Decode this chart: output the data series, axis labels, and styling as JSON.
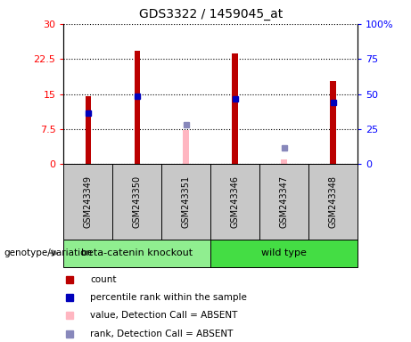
{
  "title": "GDS3322 / 1459045_at",
  "samples": [
    "GSM243349",
    "GSM243350",
    "GSM243351",
    "GSM243346",
    "GSM243347",
    "GSM243348"
  ],
  "red_bars": [
    14.5,
    24.2,
    null,
    23.7,
    null,
    17.8
  ],
  "blue_markers": [
    11.0,
    14.5,
    null,
    14.0,
    null,
    13.2
  ],
  "pink_bars": [
    null,
    null,
    7.3,
    null,
    1.0,
    null
  ],
  "light_blue_markers": [
    null,
    null,
    8.5,
    null,
    3.5,
    null
  ],
  "groups": [
    {
      "label": "beta-catenin knockout",
      "indices": [
        0,
        1,
        2
      ],
      "color": "#90EE90"
    },
    {
      "label": "wild type",
      "indices": [
        3,
        4,
        5
      ],
      "color": "#44DD44"
    }
  ],
  "ylim_left": [
    0,
    30
  ],
  "ylim_right": [
    0,
    100
  ],
  "yticks_left": [
    0,
    7.5,
    15,
    22.5,
    30
  ],
  "ytick_labels_left": [
    "0",
    "7.5",
    "15",
    "22.5",
    "30"
  ],
  "yticks_right": [
    0,
    25,
    50,
    75,
    100
  ],
  "ytick_labels_right": [
    "0",
    "25",
    "50",
    "75",
    "100%"
  ],
  "bar_width": 0.12,
  "bar_color_red": "#BB0000",
  "bar_color_pink": "#FFB6C1",
  "marker_color_blue": "#0000BB",
  "marker_color_lightblue": "#8888BB",
  "background_label": "#C8C8C8",
  "genotype_label": "genotype/variation",
  "legend_items": [
    {
      "color": "#BB0000",
      "label": "count"
    },
    {
      "color": "#0000BB",
      "label": "percentile rank within the sample"
    },
    {
      "color": "#FFB6C1",
      "label": "value, Detection Call = ABSENT"
    },
    {
      "color": "#8888BB",
      "label": "rank, Detection Call = ABSENT"
    }
  ]
}
